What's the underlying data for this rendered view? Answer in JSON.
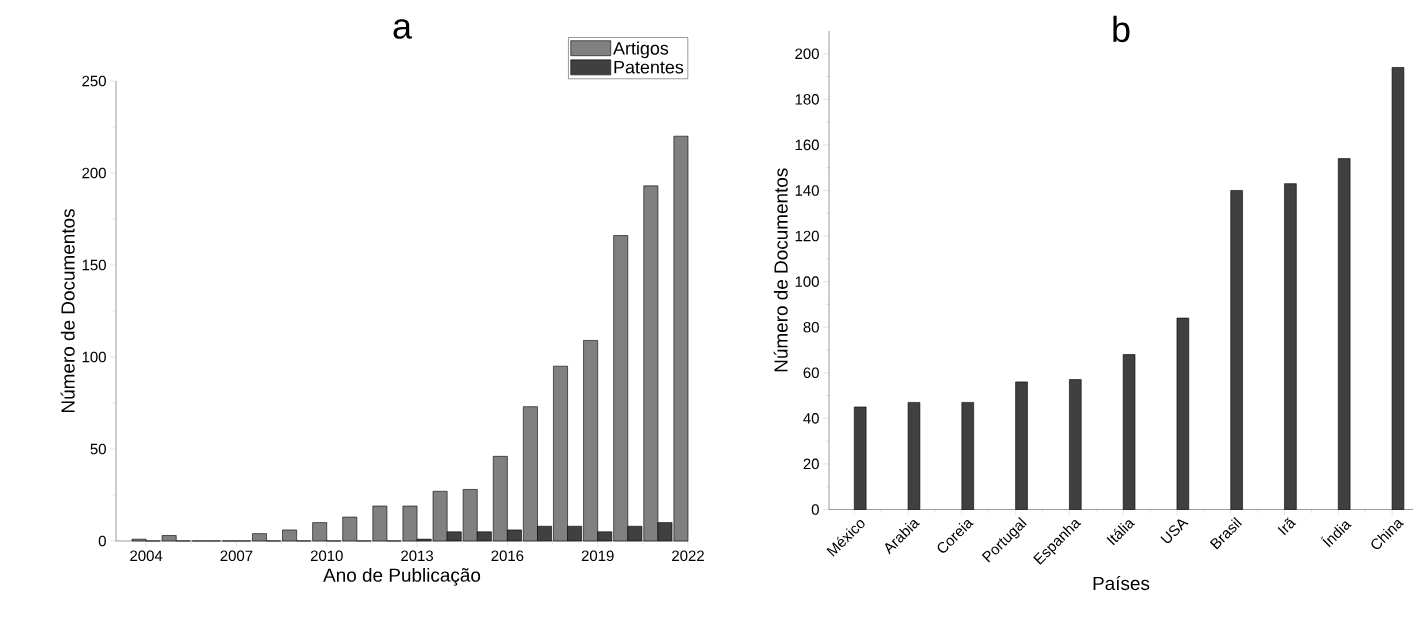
{
  "chart_data": [
    {
      "type": "bar",
      "title": "a",
      "xlabel": "Ano de Publicação",
      "ylabel": "Número de Documentos",
      "x": [
        2004,
        2005,
        2006,
        2007,
        2008,
        2009,
        2010,
        2011,
        2012,
        2013,
        2014,
        2015,
        2016,
        2017,
        2018,
        2019,
        2020,
        2021,
        2022
      ],
      "series": [
        {
          "name": "Artigos",
          "color": "#808080",
          "values": [
            1,
            3,
            0,
            0,
            4,
            6,
            10,
            13,
            19,
            19,
            27,
            28,
            46,
            73,
            95,
            109,
            166,
            193,
            220
          ]
        },
        {
          "name": "Patentes",
          "color": "#404040",
          "values": [
            0,
            0,
            0,
            0,
            0,
            0,
            0,
            0,
            0,
            1,
            5,
            5,
            6,
            8,
            8,
            5,
            8,
            10,
            null
          ]
        }
      ],
      "xlim": [
        2003,
        2022
      ],
      "xticks": [
        2004,
        2007,
        2010,
        2013,
        2016,
        2019,
        2022
      ],
      "ylim": [
        0,
        250
      ],
      "yticks": [
        0,
        50,
        100,
        150,
        200,
        250
      ],
      "legend": "top right",
      "grid": false
    },
    {
      "type": "bar",
      "title": "b",
      "xlabel": "Países",
      "ylabel": "Número de Documentos",
      "categories": [
        "México",
        "Arabia",
        "Coreia",
        "Portugal",
        "Espanha",
        "Itália",
        "USA",
        "Brasil",
        "Irã",
        "Índia",
        "China"
      ],
      "values": [
        45,
        47,
        47,
        56,
        57,
        68,
        84,
        140,
        143,
        154,
        194
      ],
      "color": "#404040",
      "ylim": [
        0,
        210
      ],
      "yticks": [
        0,
        20,
        40,
        60,
        80,
        100,
        120,
        140,
        160,
        180,
        200
      ],
      "grid": false
    }
  ]
}
